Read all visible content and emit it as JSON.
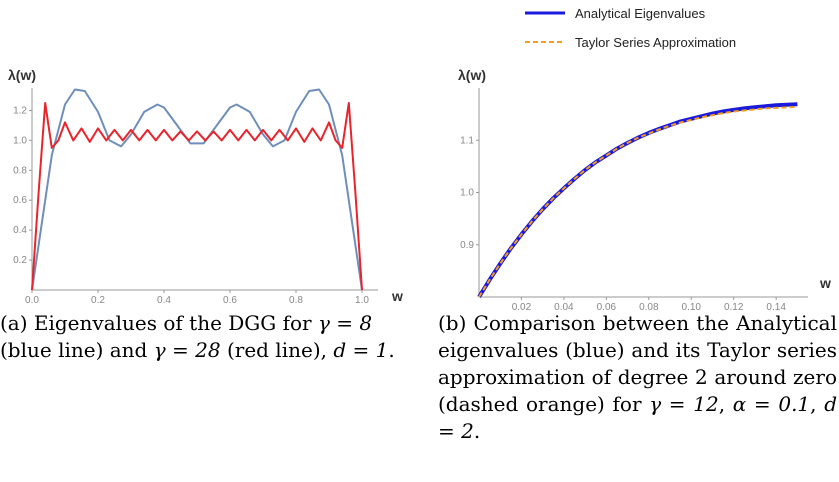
{
  "chart_data": [
    {
      "type": "line",
      "ylabel": "λ(w)",
      "xlabel": "w",
      "xlim": [
        0,
        1.0
      ],
      "ylim": [
        0,
        1.35
      ],
      "x_ticks": [
        "0.0",
        "0.2",
        "0.4",
        "0.6",
        "0.8",
        "1.0"
      ],
      "y_ticks": [
        "0.2",
        "0.4",
        "0.6",
        "0.8",
        "1.0",
        "1.2"
      ],
      "grid": false,
      "caption": {
        "prefix": "(a) Eigenvalues of the DGG for ",
        "g1": "γ = 8",
        "mid1": " (blue line) and ",
        "g2": "γ = 28",
        "mid2": " (red line), ",
        "d": "d = 1",
        "suffix": "."
      },
      "series": [
        {
          "color": "#6f8fba",
          "x": [
            0.0,
            0.03,
            0.06,
            0.1,
            0.13,
            0.16,
            0.2,
            0.235,
            0.27,
            0.3,
            0.34,
            0.38,
            0.4,
            0.44,
            0.48,
            0.52,
            0.56,
            0.6,
            0.62,
            0.66,
            0.7,
            0.73,
            0.765,
            0.8,
            0.84,
            0.87,
            0.9,
            0.94,
            0.97,
            1.0
          ],
          "y": [
            0.0,
            0.45,
            0.9,
            1.24,
            1.34,
            1.33,
            1.19,
            1.0,
            0.96,
            1.04,
            1.19,
            1.24,
            1.22,
            1.1,
            0.98,
            0.98,
            1.1,
            1.22,
            1.24,
            1.19,
            1.04,
            0.96,
            1.0,
            1.19,
            1.33,
            1.34,
            1.24,
            0.9,
            0.45,
            0.0
          ]
        },
        {
          "color": "#e8242c",
          "x": [
            0.0,
            0.02,
            0.04,
            0.06,
            0.08,
            0.1,
            0.125,
            0.15,
            0.175,
            0.2,
            0.225,
            0.25,
            0.275,
            0.3,
            0.325,
            0.35,
            0.375,
            0.4,
            0.425,
            0.45,
            0.475,
            0.5,
            0.525,
            0.55,
            0.575,
            0.6,
            0.625,
            0.65,
            0.675,
            0.7,
            0.725,
            0.75,
            0.775,
            0.8,
            0.825,
            0.85,
            0.875,
            0.9,
            0.92,
            0.94,
            0.96,
            0.98,
            1.0
          ],
          "y": [
            0.0,
            0.65,
            1.25,
            0.95,
            1.0,
            1.12,
            1.0,
            1.08,
            0.99,
            1.08,
            1.0,
            1.07,
            1.0,
            1.07,
            1.0,
            1.07,
            1.0,
            1.07,
            1.0,
            1.06,
            1.0,
            1.06,
            1.0,
            1.06,
            1.0,
            1.07,
            1.0,
            1.07,
            1.0,
            1.07,
            1.0,
            1.07,
            1.0,
            1.08,
            0.99,
            1.08,
            1.0,
            1.12,
            1.0,
            0.95,
            1.25,
            0.65,
            0.0
          ]
        }
      ]
    },
    {
      "type": "line",
      "ylabel": "λ(w)",
      "xlabel": "w",
      "xlim": [
        0,
        0.155
      ],
      "ylim": [
        0.8,
        1.2
      ],
      "x_ticks": [
        "0.02",
        "0.04",
        "0.06",
        "0.08",
        "0.10",
        "0.12",
        "0.14"
      ],
      "y_ticks": [
        "0.9",
        "1.0",
        "1.1"
      ],
      "grid": false,
      "legend": {
        "placement": "top",
        "items": [
          {
            "label": "Analytical Eigenvalues",
            "color": "#1a1adc",
            "dashed": false
          },
          {
            "label": "Taylor Series Approximation",
            "color": "#f39c1e",
            "dashed": true
          }
        ]
      },
      "caption": {
        "prefix": "(b) Comparison between the Analytical eigenvalues (blue) and its Taylor series approximation of degree 2 around zero (dashed orange) for ",
        "g": "γ = 12",
        "sep1": ", ",
        "a": "α = 0.1",
        "sep2": ", ",
        "d": "d = 2",
        "suffix": "."
      },
      "series": [
        {
          "name": "Analytical Eigenvalues",
          "color": "#1a1adc",
          "x": [
            0.0,
            0.005,
            0.01,
            0.015,
            0.02,
            0.025,
            0.03,
            0.035,
            0.04,
            0.045,
            0.05,
            0.055,
            0.06,
            0.065,
            0.07,
            0.075,
            0.08,
            0.085,
            0.09,
            0.095,
            0.1,
            0.105,
            0.11,
            0.115,
            0.12,
            0.125,
            0.13,
            0.135,
            0.14,
            0.145,
            0.15
          ],
          "y": [
            0.8,
            0.833,
            0.864,
            0.893,
            0.92,
            0.945,
            0.968,
            0.989,
            1.008,
            1.026,
            1.043,
            1.058,
            1.071,
            1.084,
            1.095,
            1.105,
            1.114,
            1.122,
            1.129,
            1.136,
            1.141,
            1.146,
            1.151,
            1.155,
            1.158,
            1.161,
            1.163,
            1.165,
            1.167,
            1.168,
            1.169
          ]
        },
        {
          "name": "Taylor Series Approximation",
          "color": "#f39c1e",
          "x": [
            0.0,
            0.005,
            0.01,
            0.015,
            0.02,
            0.025,
            0.03,
            0.035,
            0.04,
            0.045,
            0.05,
            0.055,
            0.06,
            0.065,
            0.07,
            0.075,
            0.08,
            0.085,
            0.09,
            0.095,
            0.1,
            0.105,
            0.11,
            0.115,
            0.12,
            0.125,
            0.13,
            0.135,
            0.14,
            0.145,
            0.15
          ],
          "y": [
            0.8,
            0.833,
            0.864,
            0.893,
            0.92,
            0.945,
            0.968,
            0.989,
            1.008,
            1.026,
            1.043,
            1.058,
            1.071,
            1.084,
            1.095,
            1.105,
            1.113,
            1.121,
            1.128,
            1.134,
            1.139,
            1.144,
            1.148,
            1.152,
            1.155,
            1.157,
            1.159,
            1.161,
            1.162,
            1.163,
            1.164
          ]
        }
      ]
    }
  ]
}
